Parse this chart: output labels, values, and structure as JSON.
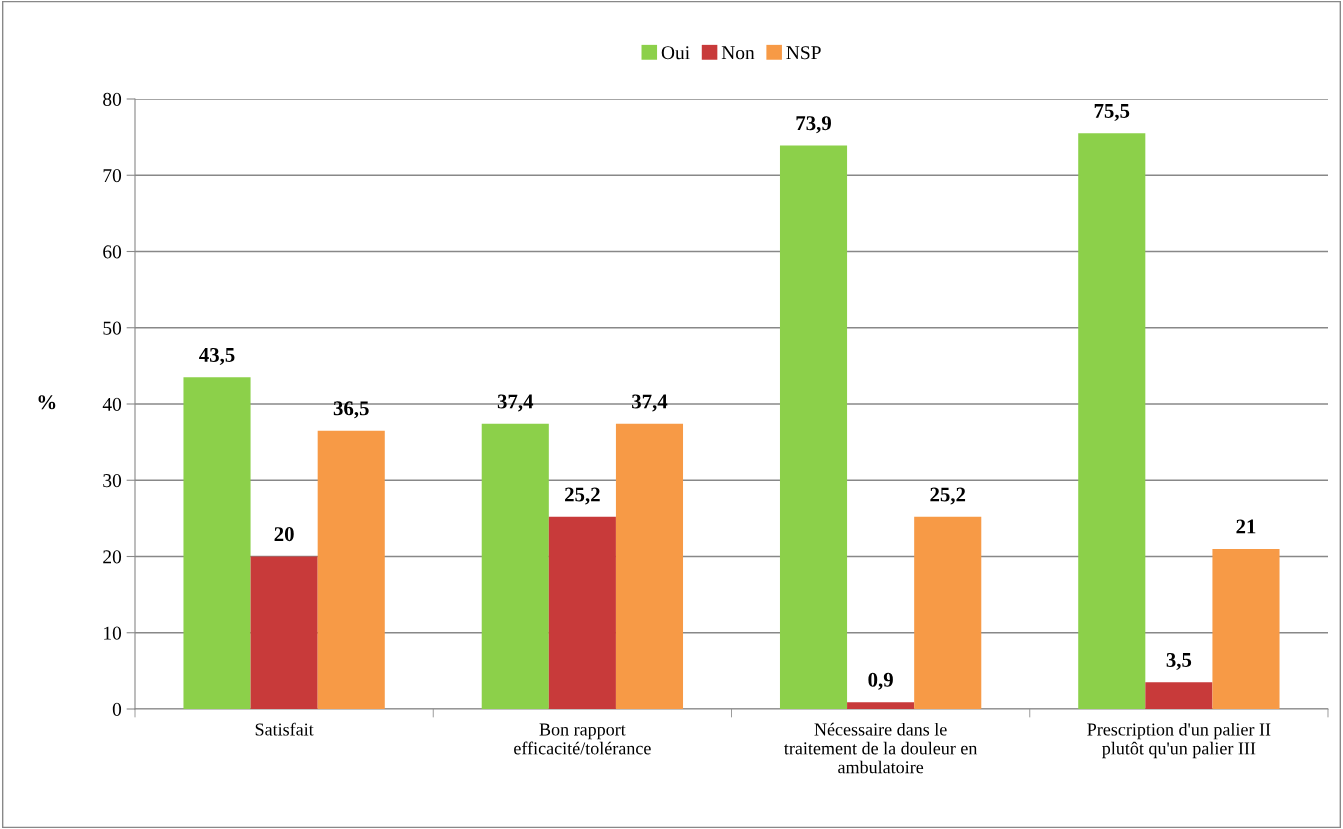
{
  "chart_data": {
    "type": "bar",
    "ylabel": "%",
    "categories": [
      "Satisfait",
      "Bon rapport\nefficacité/tolérance",
      "Nécessaire dans le\ntraitement de la douleur en\nambulatoire",
      "Prescription d'un palier II\nplutôt qu'un palier III"
    ],
    "series": [
      {
        "name": "Oui",
        "color": "#8cd04a",
        "values": [
          43.5,
          37.4,
          73.9,
          75.5
        ],
        "value_labels": [
          "43,5",
          "37,4",
          "73,9",
          "75,5"
        ]
      },
      {
        "name": "Non",
        "color": "#c83a3a",
        "values": [
          20,
          25.2,
          0.9,
          3.5
        ],
        "value_labels": [
          "20",
          "25,2",
          "0,9",
          "3,5"
        ]
      },
      {
        "name": "NSP",
        "color": "#f79a46",
        "values": [
          36.5,
          37.4,
          25.2,
          21
        ],
        "value_labels": [
          "36,5",
          "37,4",
          "25,2",
          "21"
        ]
      }
    ],
    "ylim": [
      0,
      80
    ],
    "yticks": [
      0,
      10,
      20,
      30,
      40,
      50,
      60,
      70,
      80
    ],
    "grid": "y",
    "legend": "top"
  }
}
